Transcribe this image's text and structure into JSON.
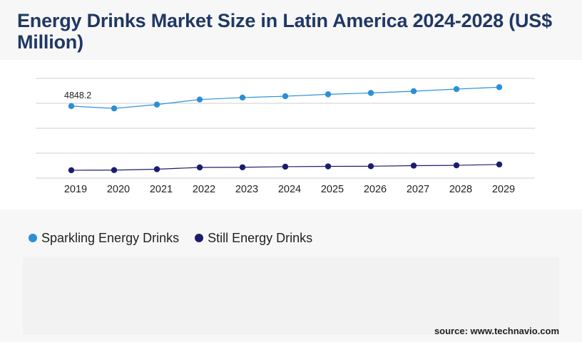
{
  "title": "Energy Drinks Market Size in Latin America 2024-2028 (US$ Million)",
  "source": "source: www.technavio.com",
  "colors": {
    "sparkling": "#2b8fd6",
    "still": "#1c1c6e",
    "grid": "#cfcfcf",
    "title": "#1f3864"
  },
  "chart_data": {
    "type": "line",
    "title": "Energy Drinks Market Size in Latin America 2024-2028 (US$ Million)",
    "xlabel": "",
    "ylabel": "",
    "x": [
      "2019",
      "2020",
      "2021",
      "2022",
      "2023",
      "2024",
      "2025",
      "2026",
      "2027",
      "2028",
      "2029"
    ],
    "series": [
      {
        "name": "Sparkling Energy Drinks",
        "color": "#2b8fd6",
        "values": [
          4848.2,
          4690,
          4950,
          5290,
          5420,
          5510,
          5640,
          5730,
          5850,
          5990,
          6120
        ]
      },
      {
        "name": "Still Energy Drinks",
        "color": "#1c1c6e",
        "values": [
          530,
          540,
          600,
          720,
          730,
          770,
          790,
          800,
          840,
          860,
          920
        ]
      }
    ],
    "data_labels": [
      {
        "series": 0,
        "index": 0,
        "text": "4848.2"
      }
    ],
    "ylim": [
      0,
      7000
    ],
    "grid": true,
    "legend": "bottom-left"
  }
}
